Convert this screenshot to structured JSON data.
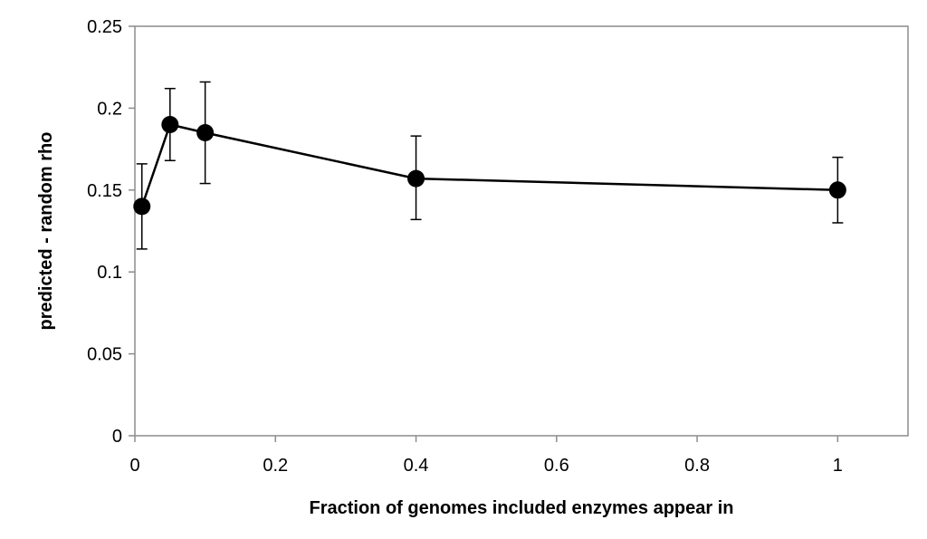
{
  "chart_data": {
    "type": "line",
    "title": "",
    "xlabel": "Fraction of genomes included enzymes appear in",
    "ylabel": "predicted - random rho",
    "xlim": [
      0,
      1.1
    ],
    "ylim": [
      0,
      0.25
    ],
    "x_ticks": [
      0,
      0.2,
      0.4,
      0.6,
      0.8,
      1
    ],
    "x_tick_labels": [
      "0",
      "0.2",
      "0.4",
      "0.6",
      "0.8",
      "1"
    ],
    "y_ticks": [
      0,
      0.05,
      0.1,
      0.15,
      0.2,
      0.25
    ],
    "y_tick_labels": [
      "0",
      "0.05",
      "0.1",
      "0.15",
      "0.2",
      "0.25"
    ],
    "grid": false,
    "legend": "none",
    "series": [
      {
        "color": "#000000",
        "marker": "circle",
        "points": [
          {
            "x": 0.01,
            "y": 0.14,
            "err_low": 0.114,
            "err_high": 0.166
          },
          {
            "x": 0.05,
            "y": 0.19,
            "err_low": 0.168,
            "err_high": 0.212
          },
          {
            "x": 0.1,
            "y": 0.185,
            "err_low": 0.154,
            "err_high": 0.216
          },
          {
            "x": 0.4,
            "y": 0.157,
            "err_low": 0.132,
            "err_high": 0.183
          },
          {
            "x": 1,
            "y": 0.15,
            "err_low": 0.13,
            "err_high": 0.17
          }
        ]
      }
    ]
  }
}
